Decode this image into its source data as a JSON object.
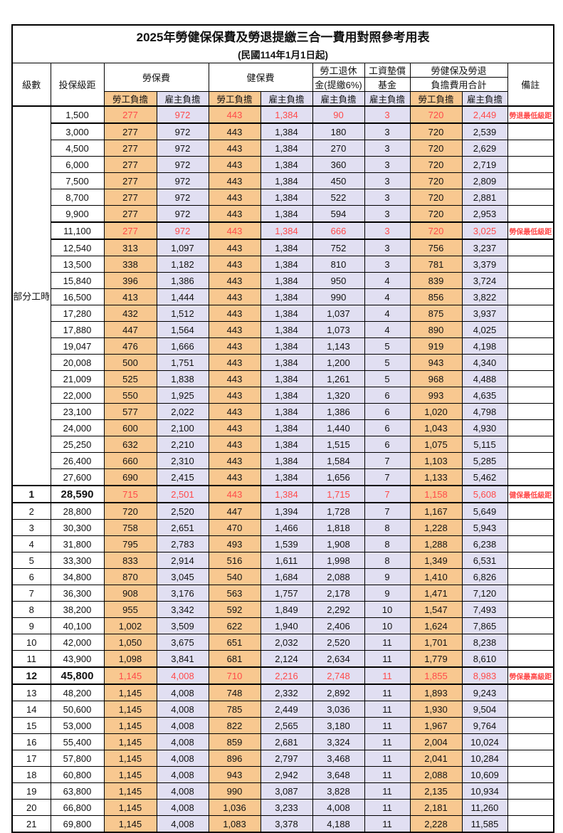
{
  "title": "2025年勞健保保費及勞退提繳三合一費用對照參考用表",
  "subtitle": "(民國114年1月1日起)",
  "colors": {
    "employee_fill": "#F8C890",
    "employer_fill": "#E1DFF2",
    "highlight_text": "#FF4A4A",
    "border": "#000000"
  },
  "header": {
    "level": "級數",
    "bracket": "投保級距",
    "labor_ins": "勞保費",
    "health_ins": "健保費",
    "pension_line1": "勞工退休",
    "pension_line2": "金(提繳6%)",
    "wage_fund_line1": "工資墊償",
    "wage_fund_line2": "基金",
    "total_line1": "勞健保及勞退",
    "total_line2": "負擔費用合計",
    "remarks": "備註",
    "employee": "勞工負擔",
    "employer": "雇主負擔"
  },
  "table": {
    "group_label": "部分工時",
    "rows": [
      {
        "level": "",
        "bracket": "1,500",
        "values": [
          "277",
          "972",
          "443",
          "1,384",
          "90",
          "3",
          "720",
          "2,449"
        ],
        "note": "勞退最低級距",
        "highlight": true
      },
      {
        "level": "",
        "bracket": "3,000",
        "values": [
          "277",
          "972",
          "443",
          "1,384",
          "180",
          "3",
          "720",
          "2,539"
        ],
        "note": ""
      },
      {
        "level": "",
        "bracket": "4,500",
        "values": [
          "277",
          "972",
          "443",
          "1,384",
          "270",
          "3",
          "720",
          "2,629"
        ],
        "note": ""
      },
      {
        "level": "",
        "bracket": "6,000",
        "values": [
          "277",
          "972",
          "443",
          "1,384",
          "360",
          "3",
          "720",
          "2,719"
        ],
        "note": ""
      },
      {
        "level": "",
        "bracket": "7,500",
        "values": [
          "277",
          "972",
          "443",
          "1,384",
          "450",
          "3",
          "720",
          "2,809"
        ],
        "note": ""
      },
      {
        "level": "",
        "bracket": "8,700",
        "values": [
          "277",
          "972",
          "443",
          "1,384",
          "522",
          "3",
          "720",
          "2,881"
        ],
        "note": ""
      },
      {
        "level": "",
        "bracket": "9,900",
        "values": [
          "277",
          "972",
          "443",
          "1,384",
          "594",
          "3",
          "720",
          "2,953"
        ],
        "note": ""
      },
      {
        "level": "",
        "bracket": "11,100",
        "values": [
          "277",
          "972",
          "443",
          "1,384",
          "666",
          "3",
          "720",
          "3,025"
        ],
        "note": "勞保最低級距",
        "highlight": true
      },
      {
        "level": "",
        "bracket": "12,540",
        "values": [
          "313",
          "1,097",
          "443",
          "1,384",
          "752",
          "3",
          "756",
          "3,237"
        ],
        "note": ""
      },
      {
        "level": "",
        "bracket": "13,500",
        "values": [
          "338",
          "1,182",
          "443",
          "1,384",
          "810",
          "3",
          "781",
          "3,379"
        ],
        "note": ""
      },
      {
        "level": "",
        "bracket": "15,840",
        "values": [
          "396",
          "1,386",
          "443",
          "1,384",
          "950",
          "4",
          "839",
          "3,724"
        ],
        "note": ""
      },
      {
        "level": "",
        "bracket": "16,500",
        "values": [
          "413",
          "1,444",
          "443",
          "1,384",
          "990",
          "4",
          "856",
          "3,822"
        ],
        "note": ""
      },
      {
        "level": "",
        "bracket": "17,280",
        "values": [
          "432",
          "1,512",
          "443",
          "1,384",
          "1,037",
          "4",
          "875",
          "3,937"
        ],
        "note": ""
      },
      {
        "level": "",
        "bracket": "17,880",
        "values": [
          "447",
          "1,564",
          "443",
          "1,384",
          "1,073",
          "4",
          "890",
          "4,025"
        ],
        "note": ""
      },
      {
        "level": "",
        "bracket": "19,047",
        "values": [
          "476",
          "1,666",
          "443",
          "1,384",
          "1,143",
          "5",
          "919",
          "4,198"
        ],
        "note": ""
      },
      {
        "level": "",
        "bracket": "20,008",
        "values": [
          "500",
          "1,751",
          "443",
          "1,384",
          "1,200",
          "5",
          "943",
          "4,340"
        ],
        "note": ""
      },
      {
        "level": "",
        "bracket": "21,009",
        "values": [
          "525",
          "1,838",
          "443",
          "1,384",
          "1,261",
          "5",
          "968",
          "4,488"
        ],
        "note": ""
      },
      {
        "level": "",
        "bracket": "22,000",
        "values": [
          "550",
          "1,925",
          "443",
          "1,384",
          "1,320",
          "6",
          "993",
          "4,635"
        ],
        "note": ""
      },
      {
        "level": "",
        "bracket": "23,100",
        "values": [
          "577",
          "2,022",
          "443",
          "1,384",
          "1,386",
          "6",
          "1,020",
          "4,798"
        ],
        "note": ""
      },
      {
        "level": "",
        "bracket": "24,000",
        "values": [
          "600",
          "2,100",
          "443",
          "1,384",
          "1,440",
          "6",
          "1,043",
          "4,930"
        ],
        "note": ""
      },
      {
        "level": "",
        "bracket": "25,250",
        "values": [
          "632",
          "2,210",
          "443",
          "1,384",
          "1,515",
          "6",
          "1,075",
          "5,115"
        ],
        "note": ""
      },
      {
        "level": "",
        "bracket": "26,400",
        "values": [
          "660",
          "2,310",
          "443",
          "1,384",
          "1,584",
          "7",
          "1,103",
          "5,285"
        ],
        "note": ""
      },
      {
        "level": "",
        "bracket": "27,600",
        "values": [
          "690",
          "2,415",
          "443",
          "1,384",
          "1,656",
          "7",
          "1,133",
          "5,462"
        ],
        "note": ""
      },
      {
        "level": "1",
        "bracket": "28,590",
        "values": [
          "715",
          "2,501",
          "443",
          "1,384",
          "1,715",
          "7",
          "1,158",
          "5,608"
        ],
        "note": "健保最低級距",
        "highlight": true,
        "emphasis": true
      },
      {
        "level": "2",
        "bracket": "28,800",
        "values": [
          "720",
          "2,520",
          "447",
          "1,394",
          "1,728",
          "7",
          "1,167",
          "5,649"
        ],
        "note": ""
      },
      {
        "level": "3",
        "bracket": "30,300",
        "values": [
          "758",
          "2,651",
          "470",
          "1,466",
          "1,818",
          "8",
          "1,228",
          "5,943"
        ],
        "note": ""
      },
      {
        "level": "4",
        "bracket": "31,800",
        "values": [
          "795",
          "2,783",
          "493",
          "1,539",
          "1,908",
          "8",
          "1,288",
          "6,238"
        ],
        "note": ""
      },
      {
        "level": "5",
        "bracket": "33,300",
        "values": [
          "833",
          "2,914",
          "516",
          "1,611",
          "1,998",
          "8",
          "1,349",
          "6,531"
        ],
        "note": ""
      },
      {
        "level": "6",
        "bracket": "34,800",
        "values": [
          "870",
          "3,045",
          "540",
          "1,684",
          "2,088",
          "9",
          "1,410",
          "6,826"
        ],
        "note": ""
      },
      {
        "level": "7",
        "bracket": "36,300",
        "values": [
          "908",
          "3,176",
          "563",
          "1,757",
          "2,178",
          "9",
          "1,471",
          "7,120"
        ],
        "note": ""
      },
      {
        "level": "8",
        "bracket": "38,200",
        "values": [
          "955",
          "3,342",
          "592",
          "1,849",
          "2,292",
          "10",
          "1,547",
          "7,493"
        ],
        "note": ""
      },
      {
        "level": "9",
        "bracket": "40,100",
        "values": [
          "1,002",
          "3,509",
          "622",
          "1,940",
          "2,406",
          "10",
          "1,624",
          "7,865"
        ],
        "note": ""
      },
      {
        "level": "10",
        "bracket": "42,000",
        "values": [
          "1,050",
          "3,675",
          "651",
          "2,032",
          "2,520",
          "11",
          "1,701",
          "8,238"
        ],
        "note": ""
      },
      {
        "level": "11",
        "bracket": "43,900",
        "values": [
          "1,098",
          "3,841",
          "681",
          "2,124",
          "2,634",
          "11",
          "1,779",
          "8,610"
        ],
        "note": ""
      },
      {
        "level": "12",
        "bracket": "45,800",
        "values": [
          "1,145",
          "4,008",
          "710",
          "2,216",
          "2,748",
          "11",
          "1,855",
          "8,983"
        ],
        "note": "勞保最高級距",
        "highlight": true,
        "emphasis": true
      },
      {
        "level": "13",
        "bracket": "48,200",
        "values": [
          "1,145",
          "4,008",
          "748",
          "2,332",
          "2,892",
          "11",
          "1,893",
          "9,243"
        ],
        "note": ""
      },
      {
        "level": "14",
        "bracket": "50,600",
        "values": [
          "1,145",
          "4,008",
          "785",
          "2,449",
          "3,036",
          "11",
          "1,930",
          "9,504"
        ],
        "note": ""
      },
      {
        "level": "15",
        "bracket": "53,000",
        "values": [
          "1,145",
          "4,008",
          "822",
          "2,565",
          "3,180",
          "11",
          "1,967",
          "9,764"
        ],
        "note": ""
      },
      {
        "level": "16",
        "bracket": "55,400",
        "values": [
          "1,145",
          "4,008",
          "859",
          "2,681",
          "3,324",
          "11",
          "2,004",
          "10,024"
        ],
        "note": ""
      },
      {
        "level": "17",
        "bracket": "57,800",
        "values": [
          "1,145",
          "4,008",
          "896",
          "2,797",
          "3,468",
          "11",
          "2,041",
          "10,284"
        ],
        "note": ""
      },
      {
        "level": "18",
        "bracket": "60,800",
        "values": [
          "1,145",
          "4,008",
          "943",
          "2,942",
          "3,648",
          "11",
          "2,088",
          "10,609"
        ],
        "note": ""
      },
      {
        "level": "19",
        "bracket": "63,800",
        "values": [
          "1,145",
          "4,008",
          "990",
          "3,087",
          "3,828",
          "11",
          "2,135",
          "10,934"
        ],
        "note": ""
      },
      {
        "level": "20",
        "bracket": "66,800",
        "values": [
          "1,145",
          "4,008",
          "1,036",
          "3,233",
          "4,008",
          "11",
          "2,181",
          "11,260"
        ],
        "note": ""
      },
      {
        "level": "21",
        "bracket": "69,800",
        "values": [
          "1,145",
          "4,008",
          "1,083",
          "3,378",
          "4,188",
          "11",
          "2,228",
          "11,585"
        ],
        "note": ""
      }
    ]
  }
}
